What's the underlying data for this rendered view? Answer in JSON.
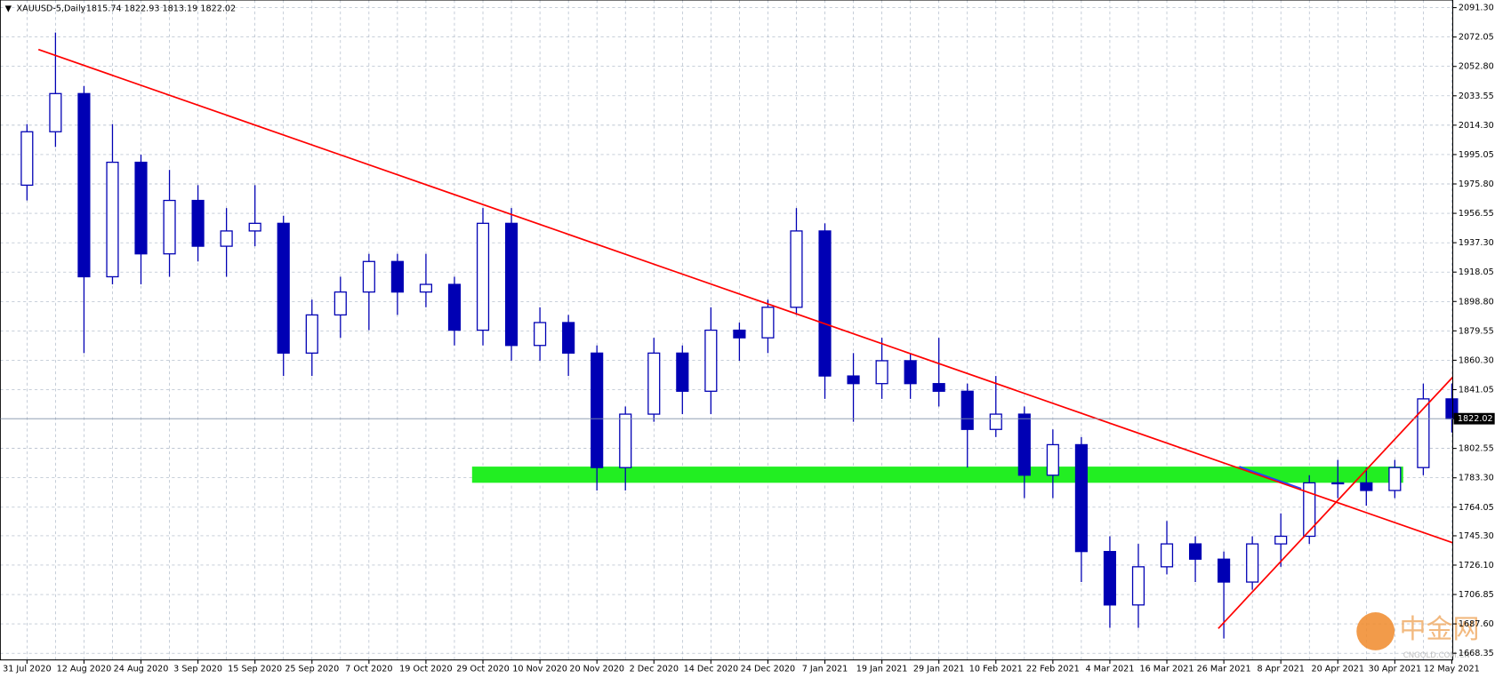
{
  "chart_data": {
    "type": "candlestick",
    "title": "XAUUSD-5,Daily",
    "title_prices": "1815.74 1822.93 1813.19 1822.02",
    "watermark": "中金网",
    "watermark_sub": "CNGOLD.COM.CN",
    "categories": [
      "31 Jul 2020",
      null,
      "12 Aug 2020",
      null,
      "24 Aug 2020",
      null,
      "3 Sep 2020",
      null,
      "15 Sep 2020",
      null,
      "25 Sep 2020",
      null,
      "7 Oct 2020",
      null,
      "19 Oct 2020",
      null,
      "29 Oct 2020",
      null,
      "10 Nov 2020",
      null,
      "20 Nov 2020",
      null,
      "2 Dec 2020",
      null,
      "14 Dec 2020",
      null,
      "24 Dec 2020",
      null,
      "7 Jan 2021",
      null,
      "19 Jan 2021",
      null,
      "29 Jan 2021",
      null,
      "10 Feb 2021",
      null,
      "22 Feb 2021",
      null,
      "4 Mar 2021",
      null,
      "16 Mar 2021",
      null,
      "26 Mar 2021",
      null,
      "8 Apr 2021",
      null,
      "20 Apr 2021",
      null,
      "30 Apr 2021",
      null,
      "12 May 2021"
    ],
    "open": [
      1975,
      2010,
      2035,
      1915,
      1990,
      1930,
      1965,
      1935,
      1945,
      1950,
      1865,
      1890,
      1905,
      1925,
      1905,
      1910,
      1880,
      1950,
      1870,
      1885,
      1865,
      1790,
      1825,
      1865,
      1840,
      1880,
      1875,
      1895,
      1945,
      1850,
      1845,
      1860,
      1845,
      1840,
      1815,
      1825,
      1785,
      1805,
      1735,
      1700,
      1725,
      1740,
      1730,
      1715,
      1740,
      1745,
      1780,
      1780,
      1775,
      1790,
      1835
    ],
    "high": [
      2015,
      2075,
      2040,
      2015,
      1995,
      1985,
      1975,
      1960,
      1975,
      1955,
      1900,
      1915,
      1930,
      1930,
      1930,
      1915,
      1960,
      1960,
      1895,
      1890,
      1870,
      1830,
      1875,
      1870,
      1895,
      1885,
      1900,
      1960,
      1950,
      1865,
      1875,
      1865,
      1875,
      1845,
      1850,
      1830,
      1815,
      1810,
      1745,
      1740,
      1755,
      1745,
      1735,
      1745,
      1760,
      1785,
      1795,
      1790,
      1795,
      1845,
      1845
    ],
    "low": [
      1965,
      2000,
      1865,
      1910,
      1910,
      1915,
      1925,
      1915,
      1935,
      1850,
      1850,
      1875,
      1880,
      1890,
      1895,
      1870,
      1870,
      1860,
      1860,
      1850,
      1775,
      1775,
      1820,
      1825,
      1825,
      1860,
      1865,
      1890,
      1835,
      1820,
      1835,
      1835,
      1830,
      1790,
      1810,
      1770,
      1770,
      1715,
      1685,
      1685,
      1720,
      1715,
      1678,
      1710,
      1725,
      1740,
      1770,
      1765,
      1770,
      1785,
      1813
    ],
    "close": [
      2010,
      2035,
      1915,
      1990,
      1930,
      1965,
      1935,
      1945,
      1950,
      1865,
      1890,
      1905,
      1925,
      1905,
      1910,
      1880,
      1950,
      1870,
      1885,
      1865,
      1790,
      1825,
      1865,
      1840,
      1880,
      1875,
      1895,
      1945,
      1850,
      1845,
      1860,
      1845,
      1840,
      1815,
      1825,
      1785,
      1805,
      1735,
      1700,
      1725,
      1740,
      1730,
      1715,
      1740,
      1745,
      1780,
      1780,
      1775,
      1790,
      1835,
      1822
    ],
    "color": "#0000b4",
    "ylim": [
      1664,
      2096.3
    ],
    "yticks": [
      {
        "value": 2091.3,
        "label": "2091.30"
      },
      2072.05,
      {
        "value": 2052.8,
        "label": "2052.80"
      },
      2033.55,
      {
        "value": 2014.3,
        "label": "2014.30"
      },
      1995.05,
      {
        "value": 1975.8,
        "label": "1975.80"
      },
      1956.55,
      {
        "value": 1937.3,
        "label": "1937.30"
      },
      1918.05,
      {
        "value": 1898.8,
        "label": "1898.80"
      },
      1879.55,
      {
        "value": 1860.3,
        "label": "1860.30"
      },
      1841.05,
      1802.55,
      {
        "value": 1783.3,
        "label": "1783.30"
      },
      1764.05,
      {
        "value": 1745.3,
        "label": "1745.30"
      },
      {
        "value": 1726.1,
        "label": "1726.10"
      },
      1706.85,
      {
        "value": 1687.6,
        "label": "1687.60"
      },
      1668.35
    ],
    "last_price": 1822.02,
    "grid": true
  }
}
